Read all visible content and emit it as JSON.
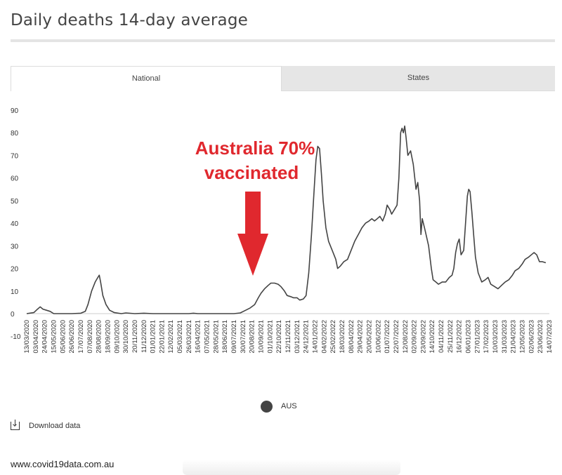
{
  "header": {
    "title": "Daily deaths 14-day average"
  },
  "tabs": [
    {
      "label": "National",
      "active": true
    },
    {
      "label": "States",
      "active": false
    }
  ],
  "legend": {
    "label": "AUS",
    "color": "#444444"
  },
  "download": {
    "label": "Download data"
  },
  "footer": {
    "source": "www.covid19data.com.au"
  },
  "annotation": {
    "line1": "Australia 70%",
    "line2": "vaccinated",
    "color": "#e0282e"
  },
  "chart_data": {
    "type": "line",
    "title": "Daily deaths 14-day average",
    "xlabel": "",
    "ylabel": "",
    "ylim": [
      -10,
      90
    ],
    "yticks": [
      -10,
      0,
      10,
      20,
      30,
      40,
      50,
      60,
      70,
      80,
      90
    ],
    "grid": false,
    "x_tick_labels": [
      "13/03/2020",
      "03/04/2020",
      "24/04/2020",
      "15/05/2020",
      "05/06/2020",
      "26/06/2020",
      "17/07/2020",
      "07/08/2020",
      "28/08/2020",
      "18/09/2020",
      "09/10/2020",
      "30/10/2020",
      "20/11/2020",
      "11/12/2020",
      "01/01/2021",
      "22/01/2021",
      "12/02/2021",
      "05/03/2021",
      "26/03/2021",
      "16/04/2021",
      "07/05/2021",
      "28/05/2021",
      "18/06/2021",
      "09/07/2021",
      "30/07/2021",
      "20/08/2021",
      "10/09/2021",
      "01/10/2021",
      "22/10/2021",
      "12/11/2021",
      "03/12/2021",
      "24/12/2021",
      "14/01/2022",
      "04/02/2022",
      "25/02/2022",
      "18/03/2022",
      "08/04/2022",
      "29/04/2022",
      "20/05/2022",
      "10/06/2022",
      "01/07/2022",
      "22/07/2022",
      "12/08/2022",
      "02/09/2022",
      "23/09/2022",
      "14/10/2022",
      "04/11/2022",
      "25/11/2022",
      "16/12/2022",
      "06/01/2023",
      "27/01/2023",
      "17/02/2023",
      "10/03/2023",
      "31/03/2023",
      "21/04/2023",
      "12/05/2023",
      "02/06/2023",
      "23/06/2023",
      "14/07/2023"
    ],
    "series": [
      {
        "name": "AUS",
        "color": "#444444",
        "points": [
          [
            0,
            0
          ],
          [
            0.8,
            0.5
          ],
          [
            1.2,
            2
          ],
          [
            1.5,
            3
          ],
          [
            1.8,
            2
          ],
          [
            2.2,
            1.5
          ],
          [
            2.6,
            1
          ],
          [
            3,
            0
          ],
          [
            4,
            0
          ],
          [
            5,
            0
          ],
          [
            6,
            0.2
          ],
          [
            6.5,
            1
          ],
          [
            6.8,
            4
          ],
          [
            7.2,
            10
          ],
          [
            7.6,
            14
          ],
          [
            7.9,
            16
          ],
          [
            8.05,
            17
          ],
          [
            8.2,
            14
          ],
          [
            8.45,
            8
          ],
          [
            8.8,
            4
          ],
          [
            9.2,
            1.5
          ],
          [
            9.7,
            0.5
          ],
          [
            10.5,
            0
          ],
          [
            11,
            0.3
          ],
          [
            12,
            0
          ],
          [
            13,
            0.2
          ],
          [
            14,
            0
          ],
          [
            15,
            0
          ],
          [
            16,
            0
          ],
          [
            17,
            0
          ],
          [
            18,
            0
          ],
          [
            18.5,
            0.2
          ],
          [
            19,
            0
          ],
          [
            20,
            0
          ],
          [
            21,
            0
          ],
          [
            22,
            0
          ],
          [
            23,
            0
          ],
          [
            23.7,
            0.3
          ],
          [
            24.3,
            1.5
          ],
          [
            24.8,
            2.5
          ],
          [
            25.3,
            4
          ],
          [
            25.7,
            7
          ],
          [
            26,
            9
          ],
          [
            26.4,
            11
          ],
          [
            26.8,
            12.5
          ],
          [
            27.1,
            13.5
          ],
          [
            27.5,
            13.5
          ],
          [
            27.9,
            13
          ],
          [
            28.2,
            12
          ],
          [
            28.6,
            10
          ],
          [
            28.9,
            8
          ],
          [
            29.3,
            7.5
          ],
          [
            29.6,
            7
          ],
          [
            30,
            7
          ],
          [
            30.3,
            6
          ],
          [
            30.7,
            6.5
          ],
          [
            31,
            8
          ],
          [
            31.3,
            18
          ],
          [
            31.6,
            35
          ],
          [
            31.9,
            55
          ],
          [
            32.1,
            68
          ],
          [
            32.3,
            74
          ],
          [
            32.5,
            73
          ],
          [
            32.7,
            62
          ],
          [
            32.9,
            50
          ],
          [
            33.2,
            38
          ],
          [
            33.5,
            32
          ],
          [
            33.9,
            28
          ],
          [
            34.3,
            24
          ],
          [
            34.5,
            20
          ],
          [
            34.8,
            21
          ],
          [
            35.2,
            23
          ],
          [
            35.6,
            24
          ],
          [
            36,
            28
          ],
          [
            36.4,
            32
          ],
          [
            36.8,
            35
          ],
          [
            37.2,
            38
          ],
          [
            37.6,
            40
          ],
          [
            38,
            41
          ],
          [
            38.3,
            42
          ],
          [
            38.6,
            41
          ],
          [
            38.9,
            42
          ],
          [
            39.2,
            43
          ],
          [
            39.5,
            41
          ],
          [
            39.8,
            44
          ],
          [
            40,
            48
          ],
          [
            40.3,
            46
          ],
          [
            40.5,
            44
          ],
          [
            40.8,
            46
          ],
          [
            41.1,
            48
          ],
          [
            41.3,
            60
          ],
          [
            41.5,
            80
          ],
          [
            41.65,
            82
          ],
          [
            41.8,
            80
          ],
          [
            41.95,
            83
          ],
          [
            42.1,
            78
          ],
          [
            42.3,
            70
          ],
          [
            42.6,
            72
          ],
          [
            42.9,
            66
          ],
          [
            43.2,
            55
          ],
          [
            43.4,
            58
          ],
          [
            43.6,
            50
          ],
          [
            43.75,
            35
          ],
          [
            43.9,
            42
          ],
          [
            44.2,
            37
          ],
          [
            44.6,
            30
          ],
          [
            44.9,
            20
          ],
          [
            45.1,
            15
          ],
          [
            45.4,
            14
          ],
          [
            45.7,
            13
          ],
          [
            46.1,
            14
          ],
          [
            46.5,
            14
          ],
          [
            46.9,
            16
          ],
          [
            47.2,
            17
          ],
          [
            47.4,
            20
          ],
          [
            47.6,
            27
          ],
          [
            47.8,
            31
          ],
          [
            48,
            33
          ],
          [
            48.2,
            26
          ],
          [
            48.5,
            28
          ],
          [
            48.7,
            40
          ],
          [
            48.9,
            52
          ],
          [
            49.05,
            55
          ],
          [
            49.2,
            54
          ],
          [
            49.4,
            45
          ],
          [
            49.6,
            35
          ],
          [
            49.8,
            25
          ],
          [
            50.1,
            18
          ],
          [
            50.5,
            14
          ],
          [
            50.9,
            15
          ],
          [
            51.2,
            16
          ],
          [
            51.5,
            13
          ],
          [
            51.9,
            12
          ],
          [
            52.3,
            11
          ],
          [
            52.7,
            12.5
          ],
          [
            53.1,
            14
          ],
          [
            53.5,
            15
          ],
          [
            53.9,
            17
          ],
          [
            54.2,
            19
          ],
          [
            54.6,
            20
          ],
          [
            55,
            22
          ],
          [
            55.3,
            24
          ],
          [
            55.7,
            25
          ],
          [
            56,
            26
          ],
          [
            56.3,
            27
          ],
          [
            56.6,
            26
          ],
          [
            56.9,
            23
          ],
          [
            57.2,
            23
          ],
          [
            57.6,
            22.5
          ]
        ]
      }
    ]
  }
}
